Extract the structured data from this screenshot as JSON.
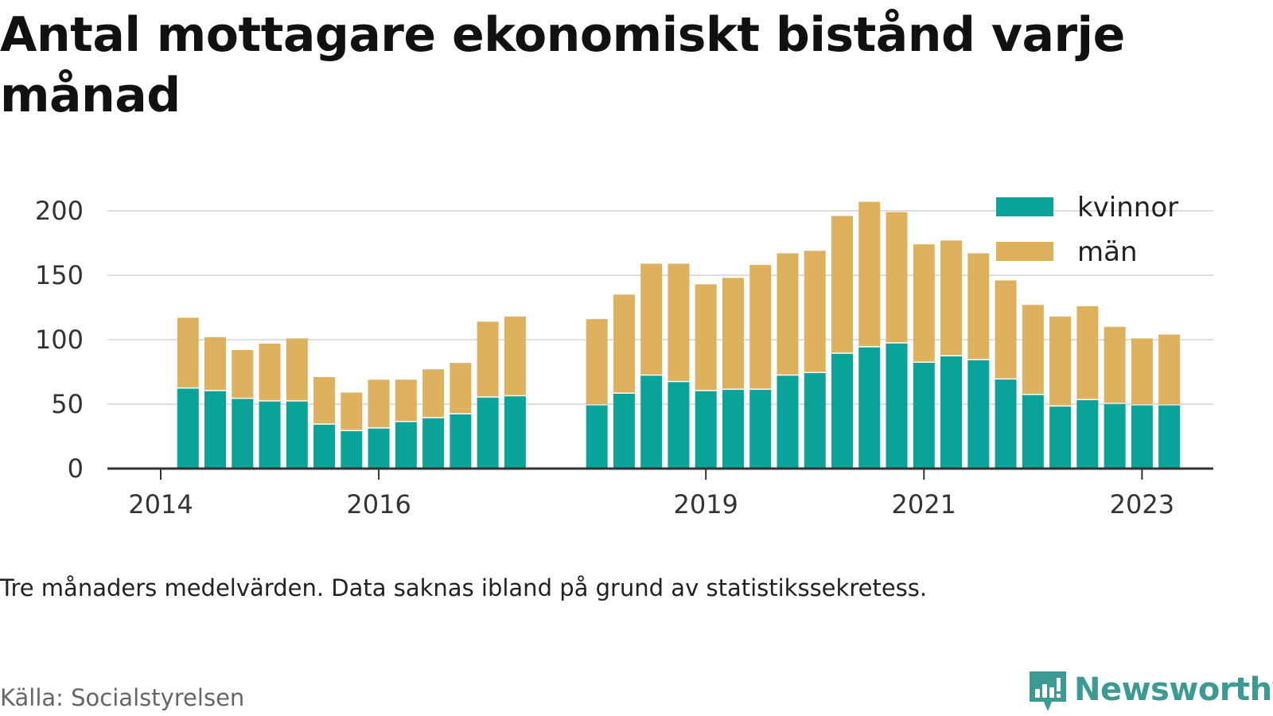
{
  "title": "Antal mottagare ekonomiskt bistånd varje månad",
  "note": "Tre månaders medelvärden. Data saknas ibland på grund av statistikssekretess.",
  "source": "Källa: Socialstyrelsen",
  "brand": {
    "name": "Newsworthy",
    "icon": "newsworthy-logo-icon",
    "color": "#3b9a93"
  },
  "colors": {
    "kvinnor": "#0aa39a",
    "man": "#ddb15e",
    "grid": "#dddddd",
    "axis": "#333333"
  },
  "chart_data": {
    "type": "bar",
    "stacked": true,
    "title": "Antal mottagare ekonomiskt bistånd varje månad",
    "xlabel": "",
    "ylabel": "",
    "ylim": [
      0,
      210
    ],
    "yticks": [
      0,
      50,
      100,
      150,
      200
    ],
    "xticks": [
      "2014",
      "2016",
      "2019",
      "2021",
      "2023"
    ],
    "grid": true,
    "legend": "top-right",
    "x": [
      "2014-04",
      "2014-07",
      "2014-10",
      "2015-01",
      "2015-04",
      "2015-07",
      "2015-10",
      "2016-01",
      "2016-04",
      "2016-07",
      "2016-10",
      "2017-01",
      "2017-04",
      "2017-07",
      "2017-10",
      "2018-01",
      "2018-04",
      "2018-07",
      "2018-10",
      "2019-01",
      "2019-04",
      "2019-07",
      "2019-10",
      "2020-01",
      "2020-04",
      "2020-07",
      "2020-10",
      "2021-01",
      "2021-04",
      "2021-07",
      "2021-10",
      "2022-01",
      "2022-04",
      "2022-07",
      "2022-10",
      "2023-01",
      "2023-04"
    ],
    "series": [
      {
        "name": "kvinnor",
        "values": [
          63,
          61,
          55,
          53,
          53,
          35,
          30,
          32,
          37,
          40,
          43,
          56,
          57,
          null,
          null,
          50,
          59,
          73,
          68,
          61,
          62,
          62,
          73,
          75,
          90,
          95,
          98,
          83,
          88,
          85,
          70,
          58,
          49,
          54,
          51,
          50,
          50
        ]
      },
      {
        "name": "män",
        "values": [
          54,
          41,
          37,
          44,
          48,
          36,
          29,
          37,
          32,
          37,
          39,
          58,
          61,
          null,
          null,
          66,
          76,
          86,
          91,
          82,
          86,
          96,
          94,
          94,
          106,
          112,
          101,
          91,
          89,
          82,
          76,
          69,
          69,
          72,
          59,
          51,
          54
        ]
      }
    ]
  }
}
